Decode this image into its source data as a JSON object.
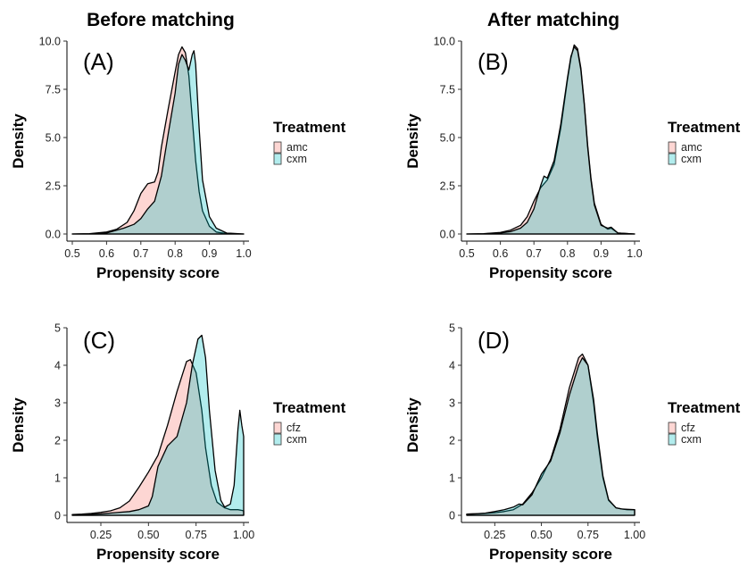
{
  "column_titles": [
    "Before matching",
    "After matching"
  ],
  "colors": {
    "group1": "#F8766D",
    "group2": "#00BFC4",
    "outline": "#000000"
  },
  "chart_data": [
    {
      "type": "area",
      "panel": "(A)",
      "xlabel": "Propensity score",
      "ylabel": "Density",
      "xlim": [
        0.5,
        1.0
      ],
      "ylim": [
        0,
        10
      ],
      "xticks": [
        0.5,
        0.6,
        0.7,
        0.8,
        0.9,
        1.0
      ],
      "xtick_labels": [
        "0.5",
        "0.6",
        "0.7",
        "0.8",
        "0.9",
        "1.0"
      ],
      "yticks": [
        0,
        2.5,
        5,
        7.5,
        10
      ],
      "ytick_labels": [
        "0.0",
        "2.5",
        "5.0",
        "7.5",
        "10.0"
      ],
      "legend": {
        "title": "Treatment",
        "position": "right"
      },
      "series": [
        {
          "name": "amc",
          "color": "#F8766D",
          "x": [
            0.5,
            0.55,
            0.6,
            0.63,
            0.66,
            0.68,
            0.7,
            0.72,
            0.74,
            0.75,
            0.76,
            0.78,
            0.8,
            0.81,
            0.82,
            0.83,
            0.84,
            0.85,
            0.86,
            0.87,
            0.88,
            0.9,
            0.92,
            0.95,
            1.0
          ],
          "y": [
            0,
            0.02,
            0.1,
            0.25,
            0.6,
            1.2,
            2.1,
            2.6,
            2.7,
            3.2,
            4.5,
            6.5,
            8.4,
            9.3,
            9.7,
            9.4,
            8.2,
            6.0,
            3.8,
            2.2,
            1.2,
            0.4,
            0.1,
            0.02,
            0
          ]
        },
        {
          "name": "cxm",
          "color": "#00BFC4",
          "x": [
            0.5,
            0.55,
            0.6,
            0.62,
            0.65,
            0.68,
            0.7,
            0.72,
            0.74,
            0.76,
            0.78,
            0.8,
            0.81,
            0.82,
            0.83,
            0.84,
            0.85,
            0.855,
            0.86,
            0.87,
            0.88,
            0.9,
            0.92,
            0.95,
            1.0
          ],
          "y": [
            0,
            0.01,
            0.05,
            0.15,
            0.3,
            0.5,
            0.8,
            1.3,
            1.7,
            3.0,
            5.2,
            7.3,
            8.8,
            9.3,
            9.0,
            8.5,
            9.3,
            9.5,
            8.8,
            5.5,
            2.8,
            0.9,
            0.3,
            0.05,
            0
          ]
        }
      ]
    },
    {
      "type": "area",
      "panel": "(B)",
      "xlabel": "Propensity score",
      "ylabel": "Density",
      "xlim": [
        0.5,
        1.0
      ],
      "ylim": [
        0,
        10
      ],
      "xticks": [
        0.5,
        0.6,
        0.7,
        0.8,
        0.9,
        1.0
      ],
      "xtick_labels": [
        "0.5",
        "0.6",
        "0.7",
        "0.8",
        "0.9",
        "1.0"
      ],
      "yticks": [
        0,
        2.5,
        5,
        7.5,
        10
      ],
      "ytick_labels": [
        "0.0",
        "2.5",
        "5.0",
        "7.5",
        "10.0"
      ],
      "legend": {
        "title": "Treatment",
        "position": "right"
      },
      "series": [
        {
          "name": "amc",
          "color": "#F8766D",
          "x": [
            0.5,
            0.55,
            0.6,
            0.63,
            0.66,
            0.68,
            0.7,
            0.72,
            0.74,
            0.76,
            0.78,
            0.8,
            0.81,
            0.82,
            0.83,
            0.84,
            0.85,
            0.86,
            0.87,
            0.88,
            0.9,
            0.92,
            0.93,
            0.95,
            1.0
          ],
          "y": [
            0,
            0.02,
            0.08,
            0.2,
            0.45,
            0.9,
            1.7,
            2.4,
            2.8,
            3.6,
            5.5,
            8.0,
            9.1,
            9.8,
            9.6,
            8.6,
            6.8,
            4.6,
            2.9,
            1.6,
            0.5,
            0.25,
            0.3,
            0.05,
            0
          ]
        },
        {
          "name": "cxm",
          "color": "#00BFC4",
          "x": [
            0.5,
            0.55,
            0.6,
            0.63,
            0.66,
            0.68,
            0.7,
            0.72,
            0.73,
            0.74,
            0.76,
            0.78,
            0.8,
            0.81,
            0.82,
            0.83,
            0.84,
            0.85,
            0.86,
            0.87,
            0.88,
            0.9,
            0.92,
            0.93,
            0.95,
            1.0
          ],
          "y": [
            0,
            0.01,
            0.05,
            0.12,
            0.3,
            0.6,
            1.3,
            2.5,
            3.0,
            2.9,
            3.8,
            5.7,
            8.1,
            9.2,
            9.7,
            9.5,
            8.5,
            6.7,
            4.5,
            2.8,
            1.5,
            0.45,
            0.3,
            0.35,
            0.05,
            0
          ]
        }
      ]
    },
    {
      "type": "area",
      "panel": "(C)",
      "xlabel": "Propensity score",
      "ylabel": "Density",
      "xlim": [
        0.1,
        1.0
      ],
      "ylim": [
        0,
        5
      ],
      "xticks": [
        0.25,
        0.5,
        0.75,
        1.0
      ],
      "xtick_labels": [
        "0.25",
        "0.50",
        "0.75",
        "1.00"
      ],
      "yticks": [
        0,
        1,
        2,
        3,
        4,
        5
      ],
      "ytick_labels": [
        "0",
        "1",
        "2",
        "3",
        "4",
        "5"
      ],
      "legend": {
        "title": "Treatment",
        "position": "right"
      },
      "series": [
        {
          "name": "cfz",
          "color": "#F8766D",
          "x": [
            0.1,
            0.15,
            0.2,
            0.25,
            0.3,
            0.35,
            0.4,
            0.45,
            0.5,
            0.55,
            0.6,
            0.65,
            0.7,
            0.72,
            0.75,
            0.78,
            0.8,
            0.83,
            0.86,
            0.9,
            0.93,
            0.95,
            0.97,
            0.99,
            1.0
          ],
          "y": [
            0.02,
            0.03,
            0.05,
            0.08,
            0.12,
            0.2,
            0.38,
            0.75,
            1.15,
            1.6,
            2.4,
            3.3,
            4.1,
            4.15,
            3.8,
            2.8,
            1.8,
            0.8,
            0.35,
            0.2,
            0.15,
            0.15,
            0.15,
            0.13,
            0.12
          ]
        },
        {
          "name": "cxm",
          "color": "#00BFC4",
          "x": [
            0.1,
            0.15,
            0.2,
            0.25,
            0.3,
            0.35,
            0.4,
            0.45,
            0.5,
            0.52,
            0.55,
            0.6,
            0.65,
            0.7,
            0.73,
            0.76,
            0.78,
            0.8,
            0.82,
            0.85,
            0.88,
            0.9,
            0.93,
            0.95,
            0.97,
            0.98,
            0.99,
            1.0
          ],
          "y": [
            0.01,
            0.02,
            0.03,
            0.04,
            0.06,
            0.08,
            0.1,
            0.15,
            0.25,
            0.5,
            1.3,
            1.85,
            2.1,
            3.0,
            4.0,
            4.7,
            4.8,
            4.2,
            2.8,
            1.2,
            0.4,
            0.22,
            0.3,
            0.8,
            2.3,
            2.8,
            2.4,
            2.1
          ]
        }
      ]
    },
    {
      "type": "area",
      "panel": "(D)",
      "xlabel": "Propensity score",
      "ylabel": "Density",
      "xlim": [
        0.1,
        1.0
      ],
      "ylim": [
        0,
        5
      ],
      "xticks": [
        0.25,
        0.5,
        0.75,
        1.0
      ],
      "xtick_labels": [
        "0.25",
        "0.50",
        "0.75",
        "1.00"
      ],
      "yticks": [
        0,
        1,
        2,
        3,
        4,
        5
      ],
      "ytick_labels": [
        "0",
        "1",
        "2",
        "3",
        "4",
        "5"
      ],
      "legend": {
        "title": "Treatment",
        "position": "right"
      },
      "series": [
        {
          "name": "cfz",
          "color": "#F8766D",
          "x": [
            0.1,
            0.15,
            0.2,
            0.25,
            0.3,
            0.35,
            0.4,
            0.45,
            0.5,
            0.55,
            0.6,
            0.65,
            0.7,
            0.72,
            0.75,
            0.78,
            0.8,
            0.83,
            0.86,
            0.9,
            0.93,
            0.96,
            1.0
          ],
          "y": [
            0.03,
            0.04,
            0.05,
            0.07,
            0.1,
            0.15,
            0.3,
            0.6,
            1.0,
            1.5,
            2.3,
            3.4,
            4.2,
            4.3,
            4.0,
            3.0,
            2.1,
            1.0,
            0.4,
            0.2,
            0.17,
            0.15,
            0.15
          ]
        },
        {
          "name": "cxm",
          "color": "#00BFC4",
          "x": [
            0.1,
            0.15,
            0.2,
            0.25,
            0.3,
            0.35,
            0.38,
            0.4,
            0.45,
            0.5,
            0.55,
            0.6,
            0.65,
            0.7,
            0.72,
            0.75,
            0.78,
            0.8,
            0.83,
            0.86,
            0.9,
            0.93,
            0.96,
            1.0
          ],
          "y": [
            0.03,
            0.04,
            0.06,
            0.1,
            0.15,
            0.22,
            0.3,
            0.28,
            0.55,
            1.1,
            1.45,
            2.2,
            3.2,
            4.0,
            4.2,
            4.0,
            3.1,
            2.2,
            1.05,
            0.42,
            0.2,
            0.17,
            0.16,
            0.15
          ]
        }
      ]
    }
  ]
}
